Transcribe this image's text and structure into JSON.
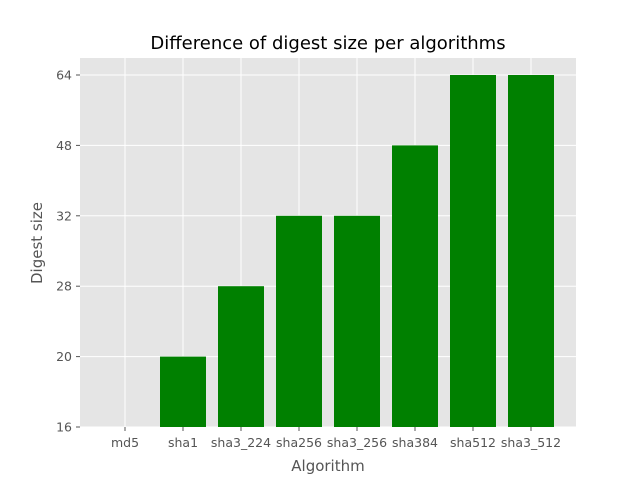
{
  "chart_data": {
    "type": "bar",
    "title": "Difference of digest size per algorithms",
    "xlabel": "Algorithm",
    "ylabel": "Digest size",
    "categories": [
      "md5",
      "sha1",
      "sha3_224",
      "sha256",
      "sha3_256",
      "sha384",
      "sha512",
      "sha3_512"
    ],
    "values": [
      "16",
      "20",
      "28",
      "32",
      "32",
      "48",
      "64",
      "64"
    ],
    "y_ticks": [
      "16",
      "20",
      "28",
      "32",
      "48",
      "64"
    ],
    "y_axis_note": "categorical axis: tick labels in order of first appearance",
    "grid": true,
    "legend": "none",
    "bar_color": "#008000",
    "background_color": "#e5e5e5",
    "grid_color": "#ffffff"
  }
}
